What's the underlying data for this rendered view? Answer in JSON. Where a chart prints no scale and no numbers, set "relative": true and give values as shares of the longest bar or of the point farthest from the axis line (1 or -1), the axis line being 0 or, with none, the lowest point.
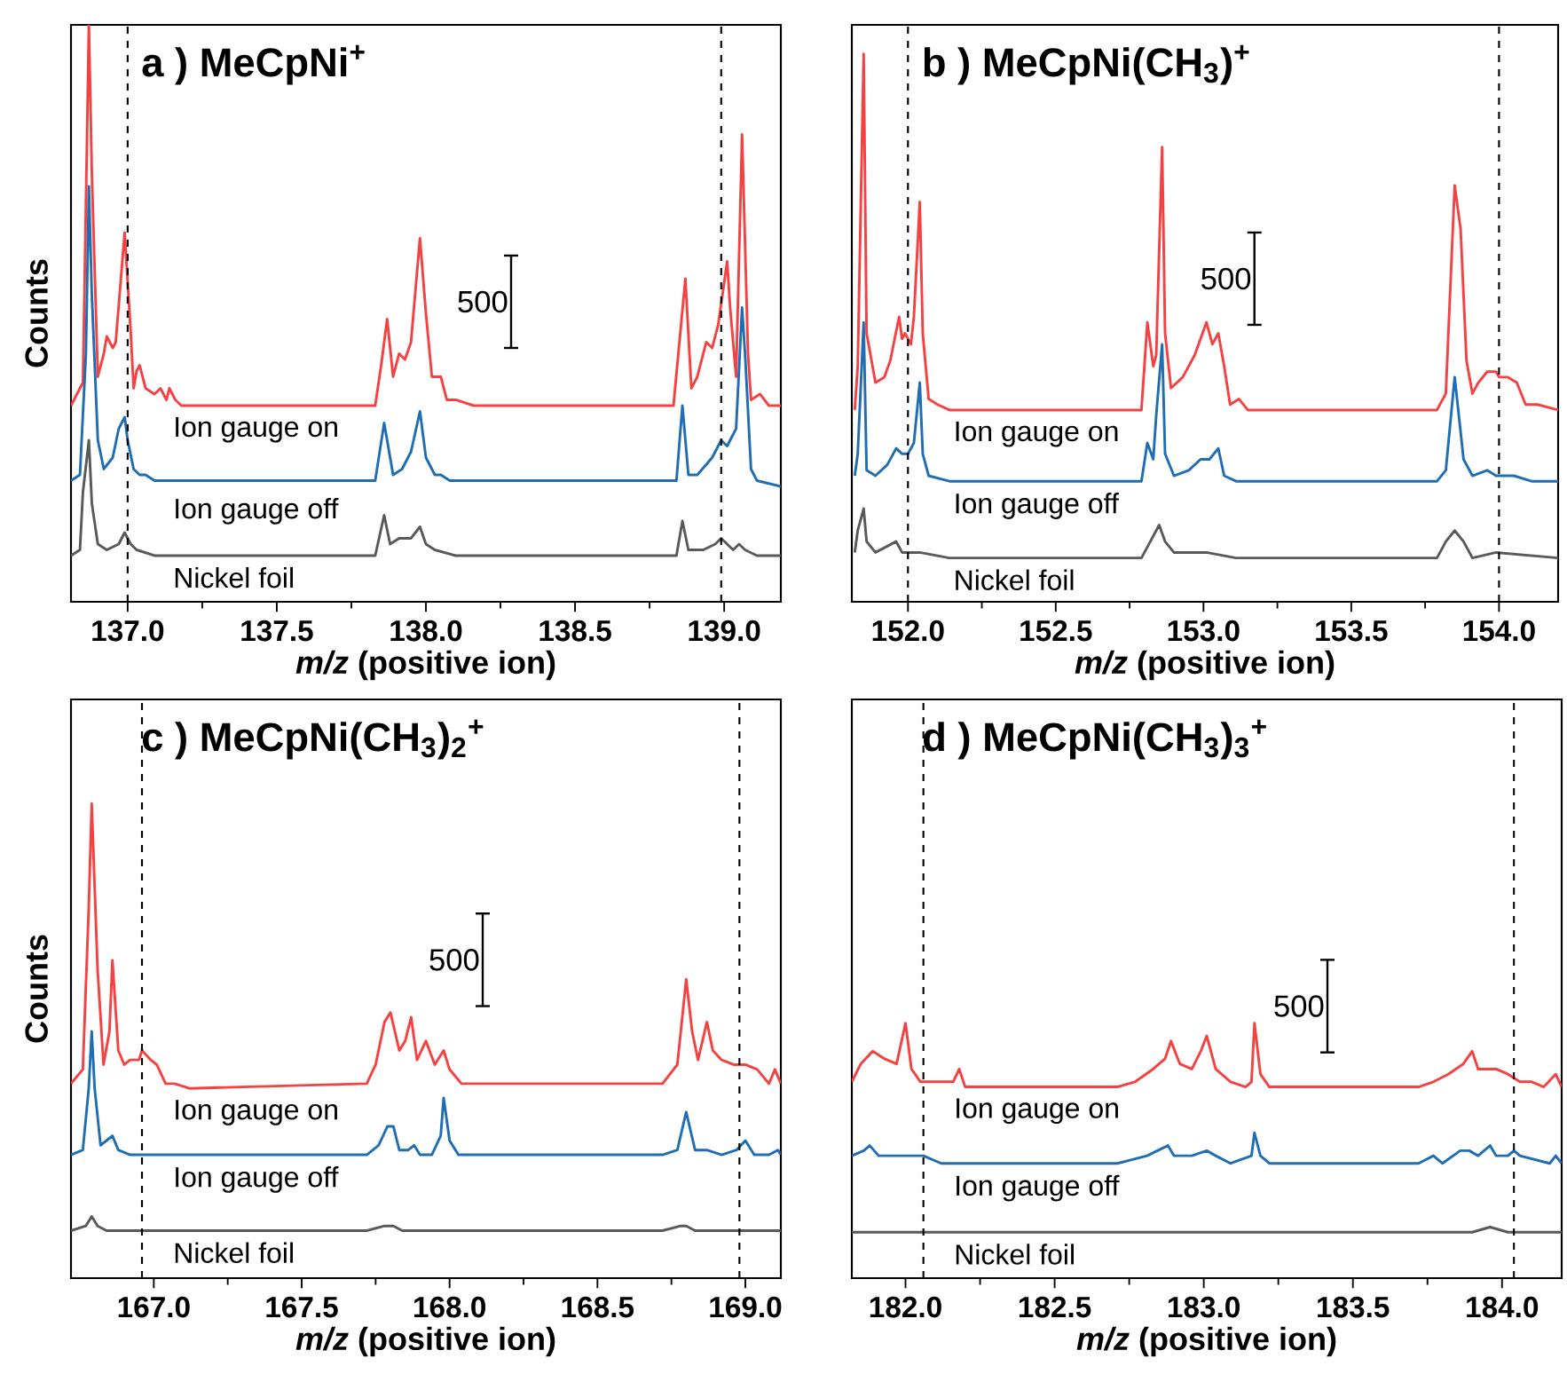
{
  "chart_data": [
    {
      "type": "line",
      "relative": true,
      "title": "a ) MeCpNi$^{+}$",
      "xlabel": "*m/z* (positive ion)",
      "ylabel": "Counts",
      "xlim": [
        136.81,
        139.19
      ],
      "xticks": [
        {
          "value": 137,
          "label": "137.0"
        },
        {
          "value": 137.5,
          "label": "137.5"
        },
        {
          "value": 138,
          "label": "138.0"
        },
        {
          "value": 138.5,
          "label": "138.5"
        },
        {
          "value": 139,
          "label": "139.0"
        }
      ],
      "marker": "none",
      "line_style": "solid",
      "annotations": [
        "500"
      ],
      "ref_lines": [
        {
          "axis": "x",
          "value": 137.0,
          "line_style": "dashed"
        },
        {
          "axis": "x",
          "value": 138.99,
          "line_style": "dashed"
        }
      ],
      "series": [
        {
          "name": "Ion gauge on",
          "color": "#f44242",
          "x": [
            136.81,
            136.85,
            136.87,
            136.88,
            136.9,
            136.92,
            136.93,
            136.95,
            136.96,
            136.99,
            137.01,
            137.02,
            137.03,
            137.04,
            137.06,
            137.09,
            137.11,
            137.13,
            137.14,
            137.16,
            137.18,
            137.4,
            137.83,
            137.85,
            137.87,
            137.89,
            137.91,
            137.93,
            137.95,
            137.98,
            138.0,
            138.02,
            138.05,
            138.07,
            138.1,
            138.16,
            138.2,
            138.83,
            138.87,
            138.89,
            138.91,
            138.94,
            138.96,
            138.98,
            139.01,
            139.02,
            139.04,
            139.06,
            139.08,
            139.09,
            139.12,
            139.15,
            139.19
          ],
          "values": [
            0.34,
            0.38,
            1.0,
            0.74,
            0.39,
            0.43,
            0.46,
            0.44,
            0.45,
            0.64,
            0.47,
            0.37,
            0.4,
            0.41,
            0.37,
            0.36,
            0.37,
            0.35,
            0.37,
            0.35,
            0.34,
            0.34,
            0.34,
            0.41,
            0.49,
            0.39,
            0.43,
            0.42,
            0.45,
            0.63,
            0.5,
            0.39,
            0.39,
            0.35,
            0.35,
            0.34,
            0.34,
            0.34,
            0.56,
            0.37,
            0.39,
            0.45,
            0.44,
            0.48,
            0.59,
            0.51,
            0.39,
            0.81,
            0.43,
            0.35,
            0.36,
            0.34,
            0.34
          ]
        },
        {
          "name": "Ion gauge off",
          "color": "#1f6eb4",
          "x": [
            136.81,
            136.84,
            136.86,
            136.87,
            136.88,
            136.9,
            136.92,
            136.95,
            136.97,
            136.99,
            137.0,
            137.02,
            137.04,
            137.06,
            137.09,
            137.83,
            137.86,
            137.89,
            137.92,
            137.95,
            137.98,
            138.0,
            138.03,
            138.05,
            138.08,
            138.84,
            138.86,
            138.88,
            138.91,
            138.96,
            138.99,
            139.01,
            139.04,
            139.06,
            139.07,
            139.09,
            139.11,
            139.19
          ],
          "values": [
            0.21,
            0.22,
            0.43,
            0.72,
            0.53,
            0.28,
            0.23,
            0.25,
            0.3,
            0.32,
            0.28,
            0.23,
            0.22,
            0.22,
            0.21,
            0.21,
            0.31,
            0.22,
            0.23,
            0.26,
            0.33,
            0.25,
            0.22,
            0.22,
            0.21,
            0.21,
            0.34,
            0.22,
            0.22,
            0.25,
            0.28,
            0.27,
            0.3,
            0.51,
            0.43,
            0.23,
            0.21,
            0.2
          ]
        },
        {
          "name": "Nickel foil",
          "color": "#595959",
          "x": [
            136.81,
            136.84,
            136.85,
            136.87,
            136.88,
            136.9,
            136.93,
            136.97,
            136.99,
            137.01,
            137.03,
            137.09,
            137.83,
            137.86,
            137.88,
            137.91,
            137.95,
            137.98,
            138.0,
            138.03,
            138.1,
            138.84,
            138.86,
            138.88,
            138.93,
            138.97,
            138.99,
            139.01,
            139.03,
            139.05,
            139.07,
            139.11,
            139.19
          ],
          "values": [
            0.08,
            0.09,
            0.19,
            0.28,
            0.17,
            0.1,
            0.09,
            0.1,
            0.12,
            0.1,
            0.09,
            0.08,
            0.08,
            0.15,
            0.1,
            0.11,
            0.11,
            0.13,
            0.1,
            0.09,
            0.08,
            0.08,
            0.14,
            0.09,
            0.09,
            0.1,
            0.11,
            0.1,
            0.09,
            0.1,
            0.09,
            0.08,
            0.08
          ]
        }
      ]
    },
    {
      "type": "line",
      "relative": true,
      "title": "b ) MeCpNi(CH$_{3}$)$^{+}$",
      "xlabel": "*m/z* (positive ion)",
      "xlim": [
        151.81,
        154.2
      ],
      "xticks": [
        {
          "value": 152,
          "label": "152.0"
        },
        {
          "value": 152.5,
          "label": "152.5"
        },
        {
          "value": 153,
          "label": "153.0"
        },
        {
          "value": 153.5,
          "label": "153.5"
        },
        {
          "value": 154,
          "label": "154.0"
        }
      ],
      "marker": "none",
      "line_style": "solid",
      "annotations": [
        "500"
      ],
      "ref_lines": [
        {
          "axis": "x",
          "value": 152.0,
          "line_style": "dashed"
        },
        {
          "axis": "x",
          "value": 154.0,
          "line_style": "dashed"
        }
      ],
      "series": [
        {
          "name": "Ion gauge on",
          "color": "#f44242",
          "x": [
            151.82,
            151.83,
            151.85,
            151.86,
            151.89,
            151.92,
            151.94,
            151.97,
            151.98,
            151.99,
            152.01,
            152.02,
            152.04,
            152.05,
            152.07,
            152.1,
            152.14,
            152.79,
            152.81,
            152.83,
            152.84,
            152.86,
            152.87,
            152.89,
            152.93,
            152.97,
            153.01,
            153.03,
            153.05,
            153.07,
            153.09,
            153.12,
            153.15,
            153.79,
            153.82,
            153.85,
            153.87,
            153.89,
            153.91,
            153.93,
            153.96,
            153.99,
            154.0,
            154.03,
            154.06,
            154.09,
            154.13,
            154.2
          ],
          "values": [
            0.35,
            0.43,
            1.0,
            0.49,
            0.4,
            0.41,
            0.44,
            0.52,
            0.48,
            0.49,
            0.47,
            0.52,
            0.73,
            0.49,
            0.37,
            0.36,
            0.35,
            0.35,
            0.51,
            0.43,
            0.45,
            0.83,
            0.49,
            0.39,
            0.41,
            0.45,
            0.51,
            0.47,
            0.49,
            0.43,
            0.36,
            0.37,
            0.35,
            0.35,
            0.38,
            0.76,
            0.68,
            0.44,
            0.38,
            0.4,
            0.42,
            0.42,
            0.41,
            0.41,
            0.4,
            0.36,
            0.36,
            0.35
          ]
        },
        {
          "name": "Ion gauge off",
          "color": "#1f6eb4",
          "x": [
            151.82,
            151.83,
            151.85,
            151.86,
            151.89,
            151.93,
            151.96,
            151.98,
            152.0,
            152.02,
            152.04,
            152.05,
            152.07,
            152.14,
            152.79,
            152.81,
            152.83,
            152.84,
            152.86,
            152.87,
            152.9,
            152.95,
            152.99,
            153.02,
            153.05,
            153.07,
            153.11,
            153.79,
            153.82,
            153.85,
            153.88,
            153.91,
            153.96,
            153.99,
            154.05,
            154.11,
            154.2
          ],
          "values": [
            0.23,
            0.27,
            0.51,
            0.24,
            0.23,
            0.25,
            0.28,
            0.27,
            0.27,
            0.29,
            0.4,
            0.27,
            0.23,
            0.22,
            0.22,
            0.29,
            0.26,
            0.34,
            0.47,
            0.27,
            0.23,
            0.24,
            0.26,
            0.26,
            0.28,
            0.23,
            0.22,
            0.22,
            0.24,
            0.41,
            0.26,
            0.23,
            0.24,
            0.23,
            0.23,
            0.22,
            0.22
          ]
        },
        {
          "name": "Nickel foil",
          "color": "#595959",
          "x": [
            151.82,
            151.83,
            151.85,
            151.86,
            151.89,
            151.96,
            151.98,
            152.04,
            152.14,
            152.79,
            152.82,
            152.85,
            152.87,
            152.9,
            153.01,
            153.11,
            153.79,
            153.82,
            153.85,
            153.88,
            153.91,
            153.99,
            154.2
          ],
          "values": [
            0.09,
            0.13,
            0.17,
            0.11,
            0.09,
            0.11,
            0.09,
            0.09,
            0.08,
            0.08,
            0.11,
            0.14,
            0.11,
            0.09,
            0.09,
            0.08,
            0.08,
            0.11,
            0.13,
            0.11,
            0.08,
            0.09,
            0.08
          ]
        }
      ]
    },
    {
      "type": "line",
      "relative": true,
      "title": "c ) MeCpNi(CH$_{3}$)$_{2}$$^{+}$",
      "xlabel": "*m/z* (positive ion)",
      "ylabel": "Counts",
      "xlim": [
        166.72,
        169.12
      ],
      "xticks": [
        {
          "value": 167,
          "label": "167.0"
        },
        {
          "value": 167.5,
          "label": "167.5"
        },
        {
          "value": 168,
          "label": "168.0"
        },
        {
          "value": 168.5,
          "label": "168.5"
        },
        {
          "value": 169,
          "label": "169.0"
        }
      ],
      "marker": "none",
      "line_style": "solid",
      "annotations": [
        "500"
      ],
      "ref_lines": [
        {
          "axis": "x",
          "value": 166.96,
          "line_style": "dashed"
        },
        {
          "axis": "x",
          "value": 168.98,
          "line_style": "dashed"
        }
      ],
      "series": [
        {
          "name": "Ion gauge on",
          "color": "#f44242",
          "x": [
            166.72,
            166.76,
            166.78,
            166.79,
            166.81,
            166.83,
            166.85,
            166.86,
            166.88,
            166.9,
            166.92,
            166.95,
            166.96,
            166.99,
            167.01,
            167.04,
            167.07,
            167.12,
            167.72,
            167.75,
            167.78,
            167.8,
            167.83,
            167.85,
            167.87,
            167.89,
            167.92,
            167.95,
            167.98,
            168.0,
            168.04,
            168.72,
            168.77,
            168.8,
            168.82,
            168.84,
            168.87,
            168.89,
            168.92,
            168.96,
            169.0,
            169.04,
            169.08,
            169.1,
            169.12
          ],
          "values": [
            0.41,
            0.44,
            0.78,
            1.0,
            0.65,
            0.45,
            0.52,
            0.67,
            0.48,
            0.45,
            0.46,
            0.46,
            0.48,
            0.46,
            0.45,
            0.41,
            0.41,
            0.4,
            0.41,
            0.45,
            0.54,
            0.56,
            0.48,
            0.5,
            0.55,
            0.46,
            0.5,
            0.45,
            0.48,
            0.44,
            0.41,
            0.41,
            0.45,
            0.63,
            0.52,
            0.46,
            0.54,
            0.48,
            0.46,
            0.45,
            0.45,
            0.44,
            0.41,
            0.44,
            0.41
          ]
        },
        {
          "name": "Ion gauge off",
          "color": "#1f6eb4",
          "x": [
            166.72,
            166.76,
            166.78,
            166.79,
            166.8,
            166.82,
            166.84,
            166.86,
            166.88,
            166.92,
            167.0,
            167.04,
            167.72,
            167.76,
            167.79,
            167.81,
            167.83,
            167.86,
            167.88,
            167.9,
            167.94,
            167.97,
            167.98,
            168.0,
            168.03,
            168.72,
            168.77,
            168.8,
            168.83,
            168.87,
            168.92,
            168.97,
            169.0,
            169.03,
            169.08,
            169.11,
            169.12
          ],
          "values": [
            0.26,
            0.27,
            0.4,
            0.52,
            0.4,
            0.28,
            0.29,
            0.3,
            0.27,
            0.26,
            0.26,
            0.26,
            0.26,
            0.28,
            0.32,
            0.32,
            0.27,
            0.27,
            0.28,
            0.26,
            0.26,
            0.3,
            0.38,
            0.29,
            0.26,
            0.26,
            0.27,
            0.35,
            0.27,
            0.27,
            0.26,
            0.27,
            0.29,
            0.26,
            0.26,
            0.27,
            0.26
          ]
        },
        {
          "name": "Nickel foil",
          "color": "#595959",
          "x": [
            166.72,
            166.77,
            166.79,
            166.81,
            166.84,
            167.72,
            167.78,
            167.81,
            167.84,
            168.08,
            168.12,
            168.72,
            168.78,
            168.8,
            168.83,
            169.12
          ],
          "values": [
            0.1,
            0.11,
            0.13,
            0.11,
            0.1,
            0.1,
            0.11,
            0.11,
            0.1,
            0.1,
            0.1,
            0.1,
            0.11,
            0.11,
            0.1,
            0.1
          ]
        }
      ]
    },
    {
      "type": "line",
      "relative": true,
      "title": "d ) MeCpNi(CH$_{3}$)$_{3}$$^{+}$",
      "xlabel": "*m/z* (positive ion)",
      "xlim": [
        181.82,
        184.2
      ],
      "xticks": [
        {
          "value": 182,
          "label": "182.0"
        },
        {
          "value": 182.5,
          "label": "182.5"
        },
        {
          "value": 183,
          "label": "183.0"
        },
        {
          "value": 183.5,
          "label": "183.5"
        },
        {
          "value": 184,
          "label": "184.0"
        }
      ],
      "marker": "none",
      "line_style": "solid",
      "annotations": [
        "500"
      ],
      "ref_lines": [
        {
          "axis": "x",
          "value": 182.06,
          "line_style": "dashed"
        },
        {
          "axis": "x",
          "value": 184.04,
          "line_style": "dashed"
        }
      ],
      "series": [
        {
          "name": "Ion gauge on",
          "color": "#f44242",
          "x": [
            181.82,
            181.85,
            181.89,
            181.93,
            181.97,
            182.0,
            182.02,
            182.05,
            182.1,
            182.16,
            182.18,
            182.2,
            182.26,
            182.71,
            182.77,
            182.83,
            182.87,
            182.89,
            182.92,
            182.96,
            182.99,
            183.01,
            183.04,
            183.09,
            183.14,
            183.16,
            183.17,
            183.19,
            183.22,
            183.72,
            183.77,
            183.82,
            183.87,
            183.9,
            183.92,
            183.95,
            183.98,
            184.02,
            184.06,
            184.1,
            184.14,
            184.18,
            184.2
          ],
          "values": [
            0.77,
            0.84,
            0.89,
            0.86,
            0.84,
            1.0,
            0.82,
            0.77,
            0.77,
            0.77,
            0.82,
            0.75,
            0.75,
            0.75,
            0.77,
            0.82,
            0.86,
            0.93,
            0.84,
            0.82,
            0.89,
            0.95,
            0.82,
            0.77,
            0.75,
            0.77,
            1.0,
            0.8,
            0.75,
            0.75,
            0.77,
            0.8,
            0.84,
            0.89,
            0.82,
            0.82,
            0.82,
            0.8,
            0.77,
            0.77,
            0.75,
            0.8,
            0.75
          ]
        },
        {
          "name": "Ion gauge off",
          "color": "#1f6eb4",
          "x": [
            181.82,
            181.86,
            181.88,
            181.91,
            181.94,
            181.98,
            182.0,
            182.06,
            182.12,
            182.71,
            182.81,
            182.88,
            182.9,
            182.93,
            182.96,
            183.01,
            183.04,
            183.09,
            183.16,
            183.17,
            183.19,
            183.22,
            183.72,
            183.77,
            183.8,
            183.86,
            183.89,
            183.92,
            183.96,
            183.98,
            184.02,
            184.04,
            184.06,
            184.16,
            184.18,
            184.2
          ],
          "values": [
            0.48,
            0.5,
            0.52,
            0.48,
            0.48,
            0.48,
            0.48,
            0.48,
            0.45,
            0.45,
            0.48,
            0.52,
            0.48,
            0.48,
            0.48,
            0.5,
            0.48,
            0.45,
            0.48,
            0.57,
            0.48,
            0.45,
            0.45,
            0.48,
            0.45,
            0.5,
            0.5,
            0.48,
            0.52,
            0.48,
            0.48,
            0.5,
            0.48,
            0.45,
            0.48,
            0.45
          ]
        },
        {
          "name": "Nickel foil",
          "color": "#595959",
          "x": [
            181.82,
            181.86,
            181.94,
            182.81,
            182.89,
            182.93,
            183.72,
            183.9,
            183.96,
            184.02,
            184.2
          ],
          "values": [
            0.18,
            0.18,
            0.18,
            0.18,
            0.18,
            0.18,
            0.18,
            0.18,
            0.2,
            0.18,
            0.18
          ]
        }
      ]
    }
  ]
}
